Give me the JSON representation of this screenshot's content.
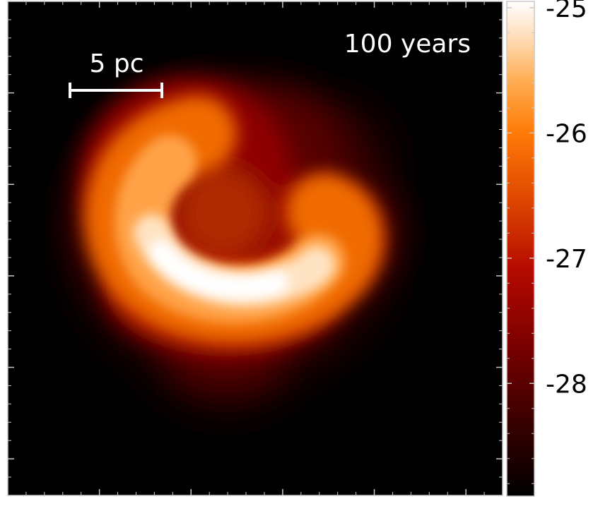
{
  "chart_data": {
    "type": "heatmap",
    "annotation": "100 years",
    "scale_bar": {
      "label": "5 pc",
      "length_pc": 5
    },
    "colorbar": {
      "tick_labels": [
        "-25",
        "-26",
        "-27",
        "-28"
      ],
      "ticks": [
        -25,
        -26,
        -27,
        -28
      ],
      "range": [
        -28.9,
        -24.95
      ],
      "colormap": "gist_heat",
      "stops": [
        {
          "value": -28.9,
          "color": "#000000"
        },
        {
          "value": -28.3,
          "color": "#3a0000"
        },
        {
          "value": -27.7,
          "color": "#7a0000"
        },
        {
          "value": -27.1,
          "color": "#b40a00"
        },
        {
          "value": -26.5,
          "color": "#e04a00"
        },
        {
          "value": -26.0,
          "color": "#ff7a08"
        },
        {
          "value": -25.6,
          "color": "#ffab4e"
        },
        {
          "value": -25.3,
          "color": "#ffd5a6"
        },
        {
          "value": -24.95,
          "color": "#ffffff"
        }
      ]
    },
    "axes": {
      "tick_labels_shown": false,
      "grid": false
    },
    "structure": "dense gas clump with a bright curved (crescent / spiral) arm, brightest emission along the lower arc"
  }
}
